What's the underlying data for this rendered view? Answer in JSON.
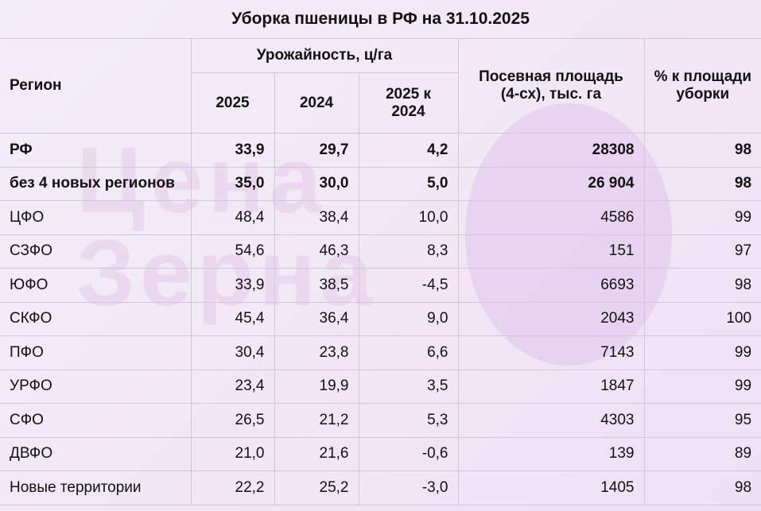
{
  "title": "Уборка пшеницы в РФ на 31.10.2025",
  "watermark": {
    "line1": "Цена",
    "line2": "Зерна"
  },
  "headers": {
    "region": "Регион",
    "yield_group": "Урожайность, ц/га",
    "y2025": "2025",
    "y2024": "2024",
    "diff": "2025 к 2024",
    "area": "Посевная площадь (4-сх), тыс. га",
    "pct": "% к площади уборки"
  },
  "rows": [
    {
      "region": "РФ",
      "y2025": "33,9",
      "y2024": "29,7",
      "diff": "4,2",
      "area": "28308",
      "pct": "98",
      "bold": true
    },
    {
      "region": "без 4 новых регионов",
      "y2025": "35,0",
      "y2024": "30,0",
      "diff": "5,0",
      "area": "26 904",
      "pct": "98",
      "bold": true
    },
    {
      "region": "ЦФО",
      "y2025": "48,4",
      "y2024": "38,4",
      "diff": "10,0",
      "area": "4586",
      "pct": "99",
      "bold": false
    },
    {
      "region": "СЗФО",
      "y2025": "54,6",
      "y2024": "46,3",
      "diff": "8,3",
      "area": "151",
      "pct": "97",
      "bold": false
    },
    {
      "region": "ЮФО",
      "y2025": "33,9",
      "y2024": "38,5",
      "diff": "-4,5",
      "area": "6693",
      "pct": "98",
      "bold": false
    },
    {
      "region": "СКФО",
      "y2025": "45,4",
      "y2024": "36,4",
      "diff": "9,0",
      "area": "2043",
      "pct": "100",
      "bold": false
    },
    {
      "region": "ПФО",
      "y2025": "30,4",
      "y2024": "23,8",
      "diff": "6,6",
      "area": "7143",
      "pct": "99",
      "bold": false
    },
    {
      "region": "УРФО",
      "y2025": "23,4",
      "y2024": "19,9",
      "diff": "3,5",
      "area": "1847",
      "pct": "99",
      "bold": false
    },
    {
      "region": "СФО",
      "y2025": "26,5",
      "y2024": "21,2",
      "diff": "5,3",
      "area": "4303",
      "pct": "95",
      "bold": false
    },
    {
      "region": "ДВФО",
      "y2025": "21,0",
      "y2024": "21,6",
      "diff": "-0,6",
      "area": "139",
      "pct": "89",
      "bold": false
    },
    {
      "region": "Новые территории",
      "y2025": "22,2",
      "y2024": "25,2",
      "diff": "-3,0",
      "area": "1405",
      "pct": "98",
      "bold": false
    }
  ]
}
